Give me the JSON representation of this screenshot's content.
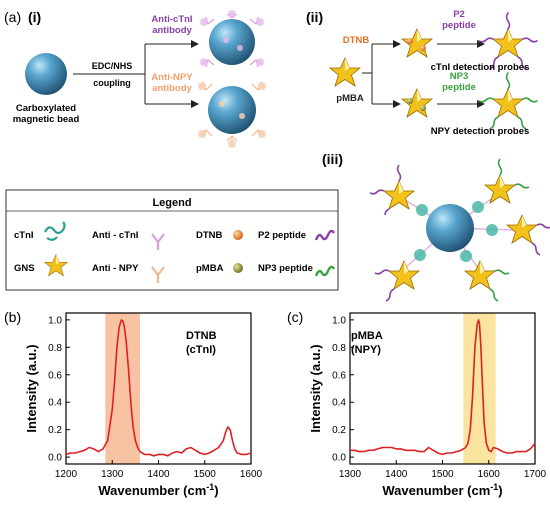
{
  "panel_a": {
    "panel_letter": "(a)",
    "sub_i": "(i)",
    "sub_ii": "(ii)",
    "sub_iii": "(iii)",
    "bead_label_1": "Carboxylated",
    "bead_label_2": "magnetic bead",
    "reaction_top": "EDC/NHS",
    "reaction_bottom": "coupling",
    "anti_ctnl_1": "Anti-cTnI",
    "anti_ctnl_2": "antibody",
    "anti_npy_1": "Anti-NPY",
    "anti_npy_2": "antibody",
    "dtnb": "DTNB",
    "pmba": "pMBA",
    "p2_1": "P2",
    "p2_2": "peptide",
    "np3_1": "NP3",
    "np3_2": "peptide",
    "ctnl_probe": "cTnI detection probes",
    "npy_probe": "NPY detection probes",
    "colors": {
      "ctnl": "#8b3fa8",
      "npy": "#f0a070",
      "dtnb": "#e07020",
      "np3": "#3aa040",
      "bead": "#2f6f9a",
      "gns": "#f2c21a"
    }
  },
  "legend": {
    "title": "Legend",
    "items": [
      "cTnI",
      "Anti - cTnI",
      "DTNB",
      "P2 peptide",
      "GNS",
      "Anti - NPY",
      "pMBA",
      "NP3 peptide"
    ]
  },
  "panel_b": {
    "letter": "(b)",
    "label_1": "DTNB",
    "label_2": "(cTnI)"
  },
  "panel_c": {
    "letter": "(c)",
    "label_1": "pMBA",
    "label_2": "(NPY)"
  },
  "chart_data": [
    {
      "type": "line",
      "xlabel": "Wavenumber (cm-1)",
      "ylabel": "Intensity (a.u.)",
      "xlim": [
        1200,
        1600
      ],
      "ylim": [
        -0.05,
        1.05
      ],
      "xticks": [
        1200,
        1300,
        1400,
        1500,
        1600
      ],
      "yticks": [
        0.0,
        0.2,
        0.4,
        0.6,
        0.8,
        1.0
      ],
      "highlight_band": [
        1285,
        1360
      ],
      "highlight_color": "#f7c3a3",
      "line_color": "#e02020",
      "x": [
        1200,
        1210,
        1220,
        1230,
        1240,
        1250,
        1260,
        1270,
        1280,
        1290,
        1300,
        1305,
        1310,
        1315,
        1320,
        1323,
        1326,
        1330,
        1335,
        1340,
        1345,
        1350,
        1355,
        1360,
        1370,
        1380,
        1390,
        1400,
        1410,
        1420,
        1430,
        1440,
        1450,
        1460,
        1470,
        1480,
        1490,
        1500,
        1510,
        1520,
        1530,
        1540,
        1545,
        1550,
        1555,
        1560,
        1565,
        1570,
        1580,
        1590,
        1600
      ],
      "y": [
        0.02,
        0.03,
        0.03,
        0.04,
        0.05,
        0.07,
        0.06,
        0.04,
        0.06,
        0.12,
        0.35,
        0.55,
        0.8,
        0.95,
        1.0,
        0.99,
        0.95,
        0.85,
        0.65,
        0.4,
        0.22,
        0.12,
        0.07,
        0.04,
        0.02,
        0.02,
        0.01,
        0.02,
        0.02,
        0.01,
        0.03,
        0.04,
        0.03,
        0.06,
        0.07,
        0.05,
        0.03,
        0.02,
        0.03,
        0.05,
        0.07,
        0.12,
        0.18,
        0.22,
        0.2,
        0.12,
        0.06,
        0.03,
        0.02,
        0.02,
        0.03
      ]
    },
    {
      "type": "line",
      "xlabel": "Wavenumber (cm-1)",
      "ylabel": "Intensity (a.u.)",
      "xlim": [
        1300,
        1700
      ],
      "ylim": [
        -0.05,
        1.05
      ],
      "xticks": [
        1300,
        1400,
        1500,
        1600,
        1700
      ],
      "yticks": [
        0.0,
        0.2,
        0.4,
        0.6,
        0.8,
        1.0
      ],
      "highlight_band": [
        1545,
        1615
      ],
      "highlight_color": "#fbe3a0",
      "line_color": "#e02020",
      "x": [
        1300,
        1310,
        1320,
        1330,
        1340,
        1350,
        1360,
        1370,
        1380,
        1390,
        1400,
        1410,
        1420,
        1430,
        1440,
        1450,
        1460,
        1470,
        1480,
        1490,
        1500,
        1510,
        1520,
        1530,
        1540,
        1550,
        1555,
        1560,
        1565,
        1570,
        1575,
        1578,
        1580,
        1583,
        1586,
        1590,
        1595,
        1600,
        1605,
        1610,
        1620,
        1630,
        1640,
        1650,
        1660,
        1670,
        1680,
        1690,
        1700
      ],
      "y": [
        0.05,
        0.05,
        0.04,
        0.04,
        0.05,
        0.05,
        0.06,
        0.07,
        0.07,
        0.07,
        0.06,
        0.06,
        0.05,
        0.05,
        0.05,
        0.04,
        0.04,
        0.07,
        0.05,
        0.03,
        0.02,
        0.03,
        0.03,
        0.04,
        0.05,
        0.07,
        0.1,
        0.2,
        0.45,
        0.8,
        0.97,
        1.0,
        0.97,
        0.8,
        0.55,
        0.25,
        0.1,
        0.05,
        0.04,
        0.07,
        0.06,
        0.04,
        0.03,
        0.03,
        0.04,
        0.04,
        0.04,
        0.06,
        0.1
      ]
    }
  ]
}
